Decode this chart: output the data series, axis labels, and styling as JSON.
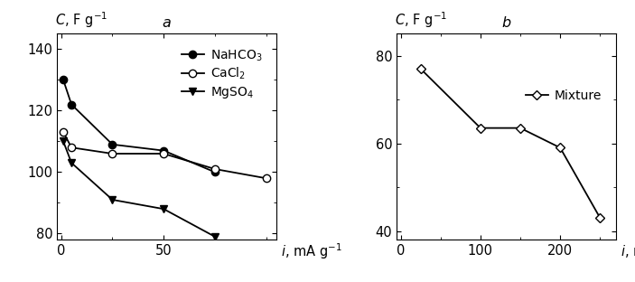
{
  "panel_a": {
    "title": "a",
    "xlim": [
      -2,
      105
    ],
    "ylim": [
      78,
      145
    ],
    "xticks": [
      0,
      50
    ],
    "xtick_labels": [
      "0",
      "50"
    ],
    "yticks": [
      80,
      100,
      120,
      140
    ],
    "series": [
      {
        "label": "NaHCO$_3$",
        "x": [
          1,
          5,
          25,
          50,
          75
        ],
        "y": [
          130,
          122,
          109,
          107,
          100
        ],
        "marker": "o",
        "filled": true
      },
      {
        "label": "CaCl$_2$",
        "x": [
          1,
          5,
          25,
          50,
          75,
          100
        ],
        "y": [
          113,
          108,
          106,
          106,
          101,
          98
        ],
        "marker": "o",
        "filled": false
      },
      {
        "label": "MgSO$_4$",
        "x": [
          1,
          5,
          25,
          50,
          75
        ],
        "y": [
          110,
          103,
          91,
          88,
          79
        ],
        "marker": "v",
        "filled": true
      }
    ]
  },
  "panel_b": {
    "title": "b",
    "xlim": [
      -5,
      270
    ],
    "ylim": [
      38,
      85
    ],
    "xticks": [
      0,
      100,
      200
    ],
    "xtick_labels": [
      "0",
      "100",
      "200"
    ],
    "yticks": [
      40,
      60,
      80
    ],
    "series": [
      {
        "label": "Mixture",
        "x": [
          25,
          100,
          150,
          200,
          250
        ],
        "y": [
          77,
          63.5,
          63.5,
          59,
          43
        ],
        "marker": "D",
        "filled": false
      }
    ]
  },
  "font_size": 10.5,
  "legend_font_size": 10,
  "marker_size": 6,
  "linewidth": 1.3,
  "color": "black",
  "bg_color": "#ffffff"
}
